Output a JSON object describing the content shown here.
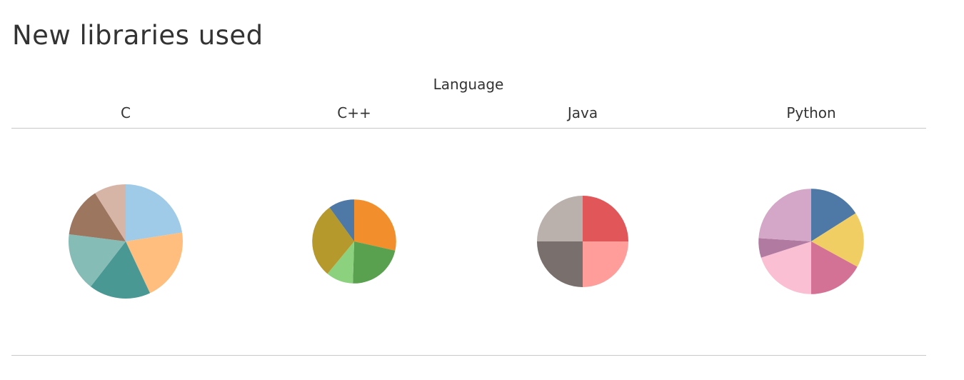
{
  "title": "New libraries used",
  "chart_data": {
    "type": "pie",
    "title": "New libraries used",
    "column_group_label": "Language",
    "panels": [
      {
        "language": "C",
        "total": 1.0,
        "slices": [
          {
            "value": 0.225,
            "color": "#a0cbe8"
          },
          {
            "value": 0.205,
            "color": "#ffbe7d"
          },
          {
            "value": 0.175,
            "color": "#499894"
          },
          {
            "value": 0.165,
            "color": "#86bcb6"
          },
          {
            "value": 0.14,
            "color": "#9d7660"
          },
          {
            "value": 0.09,
            "color": "#d7b5a6"
          }
        ]
      },
      {
        "language": "C++",
        "total": 0.54,
        "slices": [
          {
            "value": 0.285,
            "color": "#f28e2b"
          },
          {
            "value": 0.22,
            "color": "#59a14f"
          },
          {
            "value": 0.105,
            "color": "#8cd17d"
          },
          {
            "value": 0.29,
            "color": "#b6992d"
          },
          {
            "value": 0.1,
            "color": "#4e79a7"
          }
        ]
      },
      {
        "language": "Java",
        "total": 0.64,
        "slices": [
          {
            "value": 0.25,
            "color": "#e15759"
          },
          {
            "value": 0.25,
            "color": "#ff9d9a"
          },
          {
            "value": 0.25,
            "color": "#79706e"
          },
          {
            "value": 0.25,
            "color": "#bab0ac"
          }
        ]
      },
      {
        "language": "Python",
        "total": 0.85,
        "slices": [
          {
            "value": 0.16,
            "color": "#4e79a7"
          },
          {
            "value": 0.17,
            "color": "#f1ce63"
          },
          {
            "value": 0.17,
            "color": "#d37295"
          },
          {
            "value": 0.2,
            "color": "#fabfd2"
          },
          {
            "value": 0.06,
            "color": "#b07aa1"
          },
          {
            "value": 0.24,
            "color": "#d4a6c8"
          }
        ]
      }
    ]
  }
}
